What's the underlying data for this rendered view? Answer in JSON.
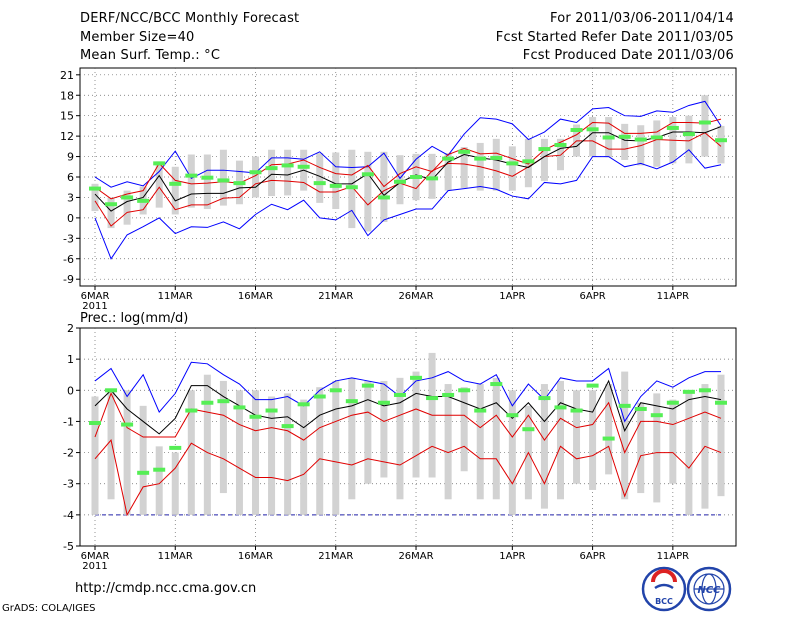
{
  "header": {
    "title": "DERF/NCC/BCC Monthly Forecast",
    "member_size": "Member Size=40",
    "variable_top": "Mean Surf. Temp.: °C",
    "forecast_period": "For 2011/03/06-2011/04/14",
    "started_date": "Fcst Started Refer Date 2011/03/05",
    "produced_date": "Fcst Produced Date 2011/03/06"
  },
  "footer": {
    "url": "http://cmdp.ncc.cma.gov.cn",
    "credit": "GrADS: COLA/IGES",
    "logo_bcc_label": "BCC",
    "logo_ncc_label": "NCC"
  },
  "colors": {
    "max_line": "#0000ff",
    "min_line": "#0000ff",
    "upper_line": "#e00000",
    "lower_line": "#e00000",
    "mean_line": "#000000",
    "observed_marker": "#55ee55",
    "spread_bar": "#d2d2d2",
    "grid": "#666666"
  },
  "chart_data": [
    {
      "type": "line",
      "title": "Mean Surf. Temp.: °C",
      "xlabel": "",
      "ylabel": "°C",
      "ylim": [
        -10,
        22
      ],
      "yticks": [
        "-9",
        "-6",
        "-3",
        "0",
        "3",
        "6",
        "9",
        "12",
        "15",
        "18",
        "21"
      ],
      "xticks": [
        {
          "day": 0,
          "label": "6MAR",
          "sublabel": "2011"
        },
        {
          "day": 5,
          "label": "11MAR"
        },
        {
          "day": 10,
          "label": "16MAR"
        },
        {
          "day": 15,
          "label": "21MAR"
        },
        {
          "day": 20,
          "label": "26MAR"
        },
        {
          "day": 26,
          "label": "1APR"
        },
        {
          "day": 31,
          "label": "6APR"
        },
        {
          "day": 36,
          "label": "11APR"
        }
      ],
      "days": 39,
      "series": [
        {
          "name": "max",
          "values": [
            6,
            4.5,
            5.3,
            4.7,
            6.8,
            9.8,
            5.8,
            7,
            7,
            6.8,
            6.6,
            8.8,
            8.8,
            8.6,
            9.7,
            7.5,
            7.4,
            7.5,
            9.5,
            5.8,
            8.6,
            10.5,
            9.2,
            12.3,
            14.7,
            14.5,
            13.8,
            11.5,
            12.6,
            14.5,
            14,
            16,
            16.2,
            15,
            14.9,
            15.7,
            15.5,
            16.5,
            17.1,
            13.5
          ]
        },
        {
          "name": "upper",
          "values": [
            4.5,
            2.8,
            3.5,
            4,
            8,
            5.5,
            5,
            5.1,
            5.3,
            5.1,
            6.2,
            7.8,
            7.9,
            8.5,
            7.4,
            6.5,
            6.3,
            7.7,
            4.6,
            6.5,
            7.5,
            6.8,
            9.3,
            10.2,
            9.4,
            9.5,
            8.7,
            7.9,
            10,
            11.1,
            12.2,
            14,
            13.9,
            12.4,
            12.4,
            12.6,
            14,
            14,
            13.9,
            14.5,
            12
          ]
        },
        {
          "name": "mean",
          "values": [
            3.5,
            1,
            2.4,
            3,
            6.2,
            2.5,
            3.5,
            3.6,
            3.6,
            4.4,
            4.5,
            6.4,
            6.3,
            7,
            6.1,
            5,
            5,
            6.5,
            3.3,
            5.2,
            6.3,
            5.6,
            8.2,
            9.3,
            8.8,
            8.5,
            7.9,
            7.4,
            9,
            10.2,
            10.5,
            12.5,
            12.5,
            11.4,
            11.3,
            11.8,
            12.6,
            12.6,
            12.5,
            13.4,
            11.4
          ]
        },
        {
          "name": "lower",
          "values": [
            2.5,
            -1.2,
            0.8,
            1.2,
            4.5,
            1.2,
            1.9,
            1.9,
            2.9,
            3,
            5,
            5.5,
            5.4,
            5.2,
            3.8,
            3.8,
            4.6,
            1.9,
            4,
            5.1,
            4.3,
            6.9,
            8,
            7.9,
            7.5,
            6.9,
            6.1,
            7.5,
            9,
            9.2,
            11.3,
            11.3,
            10.1,
            10.1,
            10.6,
            11.5,
            11.4,
            11.3,
            12.5,
            10.5
          ]
        },
        {
          "name": "min",
          "values": [
            0,
            -6,
            -2.5,
            -1.3,
            0,
            -2.3,
            -1.3,
            -1.4,
            -0.6,
            -1.6,
            0.5,
            2,
            1.2,
            2.6,
            0,
            -0.3,
            1.1,
            -2.6,
            -0.3,
            0.5,
            1.3,
            1.3,
            4,
            4.3,
            4.6,
            4.2,
            3.2,
            2.8,
            5.2,
            5,
            5.5,
            9,
            9,
            7.5,
            8,
            7.2,
            8.2,
            10,
            7.3,
            7.8,
            7.2
          ]
        },
        {
          "name": "observed",
          "values": [
            4.3,
            2,
            3,
            2.5,
            8,
            5,
            6.2,
            5.9,
            5.5,
            5.1,
            6.7,
            7.3,
            7.7,
            7.5,
            5.1,
            4.7,
            4.5,
            6.4,
            3,
            5.3,
            6,
            5.8,
            8.7,
            9.7,
            8.7,
            8.8,
            8,
            8.3,
            10.1,
            10.7,
            12.9,
            13,
            11.8,
            11.9,
            11.5,
            11.8,
            13.2,
            12.3,
            14,
            11.4
          ]
        },
        {
          "name": "spread_top",
          "values": [
            5,
            3,
            4,
            4.6,
            8.3,
            7.5,
            9.3,
            9.3,
            10,
            8.4,
            9,
            10,
            10,
            10,
            9.5,
            9.6,
            10,
            9.7,
            9.7,
            9.2,
            9.4,
            9.4,
            9.5,
            10.4,
            11,
            11.6,
            10.5,
            11.6,
            11.6,
            11.6,
            13.7,
            14.8,
            14.8,
            13.8,
            13.6,
            14.3,
            14.8,
            15,
            18,
            13.5
          ]
        },
        {
          "name": "spread_bottom",
          "values": [
            1,
            -1.5,
            -1,
            0.5,
            1.5,
            0.5,
            1.5,
            1.3,
            1.8,
            2,
            3,
            3.2,
            3.3,
            4,
            2.2,
            1.3,
            -1.5,
            -2,
            -0.6,
            2,
            2.6,
            2.8,
            4,
            4.4,
            4,
            4,
            4,
            4.5,
            5.4,
            7,
            9,
            9,
            8.9,
            8.5,
            7.7,
            7.5,
            8,
            8,
            9,
            8
          ]
        }
      ]
    },
    {
      "type": "line",
      "title": "Prec.: log(mm/d)",
      "xlabel": "",
      "ylabel": "log(mm/d)",
      "ylim": [
        -5,
        2
      ],
      "yticks": [
        "-5",
        "-4",
        "-3",
        "-2",
        "-1",
        "0",
        "1",
        "2"
      ],
      "xticks": [
        {
          "day": 0,
          "label": "6MAR",
          "sublabel": "2011"
        },
        {
          "day": 5,
          "label": "11MAR"
        },
        {
          "day": 10,
          "label": "16MAR"
        },
        {
          "day": 15,
          "label": "21MAR"
        },
        {
          "day": 20,
          "label": "26MAR"
        },
        {
          "day": 26,
          "label": "1APR"
        },
        {
          "day": 31,
          "label": "6APR"
        },
        {
          "day": 36,
          "label": "11APR"
        }
      ],
      "days": 39,
      "baseline": -4,
      "series": [
        {
          "name": "max",
          "values": [
            0.3,
            0.7,
            -0.2,
            0.5,
            -0.7,
            -0.1,
            0.9,
            0.85,
            0.5,
            0.2,
            -0.3,
            -0.3,
            -0.2,
            -0.5,
            0,
            0.3,
            0.4,
            0.3,
            0.2,
            -0.2,
            0.3,
            0.4,
            0.6,
            0.3,
            0.2,
            0.5,
            -0.5,
            0.2,
            -0.3,
            0.4,
            0.3,
            0.3,
            0.7,
            -1,
            -0.2,
            0.3,
            0.1,
            0.4,
            0.6,
            0.6,
            0.4
          ]
        },
        {
          "name": "mean",
          "values": [
            -0.5,
            0,
            -0.6,
            -1,
            -1.4,
            -0.9,
            0.15,
            0.15,
            -0.2,
            -0.5,
            -0.8,
            -0.9,
            -0.85,
            -1.2,
            -0.8,
            -0.6,
            -0.5,
            -0.3,
            -0.5,
            -0.4,
            -0.1,
            -0.2,
            -0.2,
            -0.4,
            -0.6,
            -0.4,
            -0.9,
            -0.4,
            -1,
            -0.4,
            -0.6,
            -0.7,
            0.3,
            -1.3,
            -0.4,
            -0.5,
            -0.6,
            -0.3,
            -0.2,
            -0.3,
            -0.3
          ]
        },
        {
          "name": "upper",
          "values": [
            -1.5,
            -0.1,
            -1.2,
            -1.5,
            -1.5,
            -1.5,
            -0.6,
            -0.7,
            -0.8,
            -1.1,
            -1.3,
            -1.2,
            -1.3,
            -1.6,
            -1.2,
            -1,
            -0.8,
            -0.7,
            -1,
            -0.8,
            -0.6,
            -0.8,
            -0.8,
            -0.8,
            -1.2,
            -0.8,
            -1.5,
            -0.8,
            -1.6,
            -0.9,
            -1.2,
            -1.1,
            -0.4,
            -2,
            -1,
            -1,
            -1.1,
            -0.9,
            -0.7,
            -0.9,
            -0.8
          ]
        },
        {
          "name": "lower",
          "values": [
            -2.2,
            -1.6,
            -4,
            -3.1,
            -3,
            -2.5,
            -1.7,
            -2,
            -2.2,
            -2.5,
            -2.8,
            -2.8,
            -2.9,
            -2.7,
            -2.2,
            -2.3,
            -2.4,
            -2.2,
            -2.3,
            -2.4,
            -2.1,
            -1.8,
            -2,
            -1.8,
            -2.2,
            -2.2,
            -3,
            -2,
            -3,
            -1.8,
            -2.2,
            -2.1,
            -1.8,
            -3.4,
            -2.1,
            -2,
            -2,
            -2.5,
            -1.8,
            -2,
            -1.8
          ]
        },
        {
          "name": "observed",
          "values": [
            -1.05,
            0,
            -1.1,
            -2.65,
            -2.55,
            -1.85,
            -0.65,
            -0.4,
            -0.35,
            -0.55,
            -0.85,
            -0.65,
            -1.15,
            -0.45,
            -0.2,
            0,
            -0.35,
            0.15,
            -0.4,
            -0.15,
            0.4,
            -0.25,
            -0.15,
            0,
            -0.65,
            0.2,
            -0.8,
            -1.25,
            -0.25,
            -0.55,
            -0.65,
            0.15,
            -1.55,
            -0.5,
            -0.6,
            -0.8,
            -0.4,
            -0.05,
            0,
            -0.4
          ]
        },
        {
          "name": "spread_top",
          "values": [
            -0.2,
            0,
            0,
            -0.5,
            -1.8,
            -2,
            0,
            0.5,
            0.3,
            0,
            0,
            -0.2,
            -0.1,
            -0.3,
            0.1,
            0.3,
            0.4,
            0.3,
            0.3,
            0.4,
            0.6,
            1.2,
            0.2,
            0.1,
            0.2,
            0.4,
            0,
            -0.5,
            0.2,
            0.3,
            0,
            0,
            0.2,
            0.6,
            -0.4,
            -0.1,
            -0.3,
            0,
            0.2,
            0.5,
            0.4
          ]
        },
        {
          "name": "spread_bottom",
          "values": [
            -4,
            -3.5,
            -4,
            -4,
            -4,
            -4,
            -4,
            -4,
            -3.3,
            -4,
            -4,
            -4,
            -4,
            -4,
            -4,
            -4,
            -3.5,
            -3,
            -2.8,
            -3.5,
            -2.8,
            -2.8,
            -3.5,
            -2.6,
            -3.5,
            -3.5,
            -4,
            -3.5,
            -3.8,
            -3.5,
            -3,
            -3.2,
            -2.7,
            -3.5,
            -3.3,
            -3.6,
            -3,
            -4,
            -3.8,
            -3.4
          ]
        }
      ]
    }
  ]
}
